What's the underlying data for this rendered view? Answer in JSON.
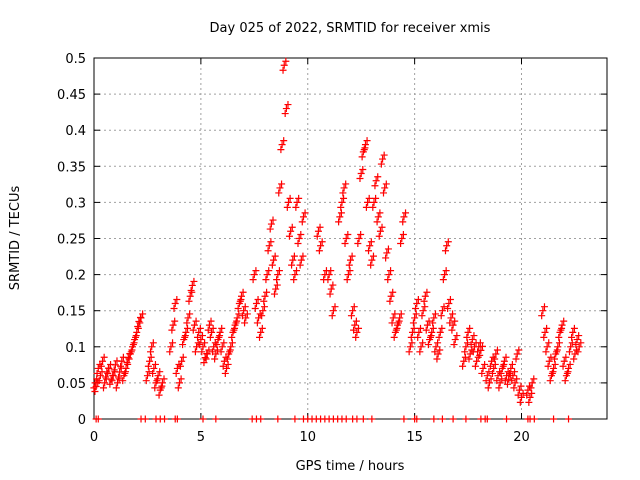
{
  "chart_data": {
    "type": "scatter",
    "title": "Day 025 of 2022, SRMTID for receiver xmis",
    "xlabel": "GPS time / hours",
    "ylabel": "SRMTID / TECUs",
    "xlim": [
      0,
      24
    ],
    "ylim": [
      0,
      0.5
    ],
    "xticks": [
      0,
      5,
      10,
      15,
      20
    ],
    "xtick_labels": [
      "0",
      "5",
      "10",
      "15",
      "20"
    ],
    "yticks": [
      0,
      0.05,
      0.1,
      0.15,
      0.2,
      0.25,
      0.3,
      0.35,
      0.4,
      0.45,
      0.5
    ],
    "ytick_labels": [
      "0",
      "0.05",
      "0.1",
      "0.15",
      "0.2",
      "0.25",
      "0.3",
      "0.35",
      "0.4",
      "0.45",
      "0.5"
    ],
    "grid": true,
    "marker": "+",
    "series": [
      {
        "name": "SRMTID",
        "color": "#ff0000",
        "points": [
          [
            0.05,
            0.05
          ],
          [
            0.1,
            0.045
          ],
          [
            0.2,
            0.07
          ],
          [
            0.3,
            0.06
          ],
          [
            0.4,
            0.08
          ],
          [
            0.5,
            0.05
          ],
          [
            0.6,
            0.065
          ],
          [
            0.7,
            0.07
          ],
          [
            0.8,
            0.055
          ],
          [
            0.9,
            0.06
          ],
          [
            1.0,
            0.075
          ],
          [
            1.1,
            0.05
          ],
          [
            1.2,
            0.065
          ],
          [
            1.3,
            0.08
          ],
          [
            1.4,
            0.06
          ],
          [
            1.5,
            0.07
          ],
          [
            1.6,
            0.085
          ],
          [
            1.7,
            0.09
          ],
          [
            1.8,
            0.1
          ],
          [
            1.9,
            0.11
          ],
          [
            2.0,
            0.12
          ],
          [
            2.1,
            0.135
          ],
          [
            2.2,
            0.14
          ],
          [
            2.5,
            0.06
          ],
          [
            2.6,
            0.08
          ],
          [
            2.7,
            0.1
          ],
          [
            2.8,
            0.07
          ],
          [
            2.9,
            0.05
          ],
          [
            3.0,
            0.06
          ],
          [
            3.1,
            0.04
          ],
          [
            3.2,
            0.05
          ],
          [
            3.6,
            0.1
          ],
          [
            3.7,
            0.13
          ],
          [
            3.8,
            0.16
          ],
          [
            3.9,
            0.07
          ],
          [
            4.0,
            0.05
          ],
          [
            4.1,
            0.08
          ],
          [
            4.2,
            0.11
          ],
          [
            4.3,
            0.12
          ],
          [
            4.4,
            0.14
          ],
          [
            4.5,
            0.17
          ],
          [
            4.6,
            0.185
          ],
          [
            4.7,
            0.13
          ],
          [
            4.8,
            0.1
          ],
          [
            4.9,
            0.12
          ],
          [
            5.0,
            0.11
          ],
          [
            5.1,
            0.1
          ],
          [
            5.2,
            0.085
          ],
          [
            5.3,
            0.09
          ],
          [
            5.4,
            0.13
          ],
          [
            5.5,
            0.12
          ],
          [
            5.6,
            0.1
          ],
          [
            5.7,
            0.09
          ],
          [
            5.8,
            0.11
          ],
          [
            5.9,
            0.12
          ],
          [
            6.0,
            0.1
          ],
          [
            6.1,
            0.08
          ],
          [
            6.2,
            0.07
          ],
          [
            6.3,
            0.09
          ],
          [
            6.4,
            0.1
          ],
          [
            6.5,
            0.12
          ],
          [
            6.6,
            0.13
          ],
          [
            6.7,
            0.14
          ],
          [
            6.8,
            0.16
          ],
          [
            6.9,
            0.17
          ],
          [
            7.0,
            0.15
          ],
          [
            7.1,
            0.14
          ],
          [
            7.5,
            0.2
          ],
          [
            7.6,
            0.16
          ],
          [
            7.7,
            0.14
          ],
          [
            7.8,
            0.12
          ],
          [
            7.9,
            0.15
          ],
          [
            8.0,
            0.17
          ],
          [
            8.1,
            0.2
          ],
          [
            8.2,
            0.24
          ],
          [
            8.3,
            0.27
          ],
          [
            8.4,
            0.22
          ],
          [
            8.5,
            0.18
          ],
          [
            8.6,
            0.2
          ],
          [
            8.7,
            0.32
          ],
          [
            8.8,
            0.38
          ],
          [
            8.9,
            0.49
          ],
          [
            9.0,
            0.43
          ],
          [
            9.1,
            0.3
          ],
          [
            9.2,
            0.26
          ],
          [
            9.3,
            0.22
          ],
          [
            9.4,
            0.2
          ],
          [
            9.5,
            0.3
          ],
          [
            9.6,
            0.25
          ],
          [
            9.7,
            0.22
          ],
          [
            9.8,
            0.28
          ],
          [
            10.5,
            0.26
          ],
          [
            10.6,
            0.24
          ],
          [
            10.8,
            0.2
          ],
          [
            11.0,
            0.2
          ],
          [
            11.1,
            0.18
          ],
          [
            11.2,
            0.15
          ],
          [
            11.5,
            0.28
          ],
          [
            11.6,
            0.3
          ],
          [
            11.7,
            0.32
          ],
          [
            11.8,
            0.25
          ],
          [
            11.9,
            0.2
          ],
          [
            12.0,
            0.22
          ],
          [
            12.1,
            0.15
          ],
          [
            12.2,
            0.13
          ],
          [
            12.3,
            0.12
          ],
          [
            12.4,
            0.25
          ],
          [
            12.5,
            0.34
          ],
          [
            12.6,
            0.37
          ],
          [
            12.7,
            0.38
          ],
          [
            12.8,
            0.3
          ],
          [
            12.9,
            0.24
          ],
          [
            13.0,
            0.22
          ],
          [
            13.1,
            0.3
          ],
          [
            13.2,
            0.33
          ],
          [
            13.3,
            0.28
          ],
          [
            13.4,
            0.26
          ],
          [
            13.5,
            0.36
          ],
          [
            13.6,
            0.32
          ],
          [
            13.7,
            0.23
          ],
          [
            13.8,
            0.2
          ],
          [
            13.9,
            0.17
          ],
          [
            14.0,
            0.14
          ],
          [
            14.1,
            0.12
          ],
          [
            14.2,
            0.13
          ],
          [
            14.3,
            0.14
          ],
          [
            14.4,
            0.25
          ],
          [
            14.5,
            0.28
          ],
          [
            14.8,
            0.1
          ],
          [
            14.9,
            0.12
          ],
          [
            15.0,
            0.14
          ],
          [
            15.1,
            0.16
          ],
          [
            15.2,
            0.12
          ],
          [
            15.3,
            0.1
          ],
          [
            15.4,
            0.15
          ],
          [
            15.5,
            0.17
          ],
          [
            15.6,
            0.13
          ],
          [
            15.7,
            0.11
          ],
          [
            15.8,
            0.12
          ],
          [
            15.9,
            0.14
          ],
          [
            16.0,
            0.1
          ],
          [
            16.1,
            0.09
          ],
          [
            16.2,
            0.12
          ],
          [
            16.3,
            0.15
          ],
          [
            16.4,
            0.2
          ],
          [
            16.5,
            0.24
          ],
          [
            16.6,
            0.16
          ],
          [
            16.7,
            0.14
          ],
          [
            16.8,
            0.13
          ],
          [
            16.9,
            0.11
          ],
          [
            17.3,
            0.08
          ],
          [
            17.4,
            0.1
          ],
          [
            17.5,
            0.12
          ],
          [
            17.6,
            0.09
          ],
          [
            17.7,
            0.11
          ],
          [
            17.8,
            0.1
          ],
          [
            17.9,
            0.08
          ],
          [
            18.0,
            0.1
          ],
          [
            18.1,
            0.095
          ],
          [
            18.2,
            0.07
          ],
          [
            18.4,
            0.06
          ],
          [
            18.5,
            0.05
          ],
          [
            18.6,
            0.08
          ],
          [
            18.7,
            0.07
          ],
          [
            18.8,
            0.09
          ],
          [
            18.9,
            0.06
          ],
          [
            19.0,
            0.05
          ],
          [
            19.1,
            0.07
          ],
          [
            19.2,
            0.08
          ],
          [
            19.3,
            0.06
          ],
          [
            19.4,
            0.055
          ],
          [
            19.5,
            0.07
          ],
          [
            19.6,
            0.06
          ],
          [
            19.7,
            0.05
          ],
          [
            19.8,
            0.09
          ],
          [
            19.9,
            0.04
          ],
          [
            20.0,
            0.03
          ],
          [
            20.3,
            0.04
          ],
          [
            20.4,
            0.03
          ],
          [
            20.5,
            0.05
          ],
          [
            21.0,
            0.15
          ],
          [
            21.1,
            0.12
          ],
          [
            21.2,
            0.1
          ],
          [
            21.3,
            0.08
          ],
          [
            21.4,
            0.06
          ],
          [
            21.5,
            0.07
          ],
          [
            21.6,
            0.09
          ],
          [
            21.7,
            0.1
          ],
          [
            21.8,
            0.12
          ],
          [
            21.9,
            0.13
          ],
          [
            22.0,
            0.08
          ],
          [
            22.1,
            0.06
          ],
          [
            22.2,
            0.07
          ],
          [
            22.3,
            0.1
          ],
          [
            22.4,
            0.12
          ],
          [
            22.5,
            0.09
          ],
          [
            22.6,
            0.11
          ],
          [
            22.7,
            0.1
          ]
        ]
      }
    ],
    "zero_markers_x": [
      0.1,
      0.2,
      2.2,
      2.4,
      2.9,
      3.1,
      3.3,
      3.8,
      3.9,
      5.1,
      5.7,
      7.4,
      7.6,
      7.8,
      8.6,
      9.4,
      9.8,
      10.0,
      10.2,
      10.4,
      10.6,
      10.8,
      11.0,
      11.2,
      11.4,
      11.6,
      11.8,
      12.1,
      12.3,
      12.6,
      13.0,
      14.5,
      15.0,
      15.1,
      15.9,
      16.3,
      16.8,
      17.4,
      18.1,
      18.3,
      18.4,
      19.3,
      20.3,
      20.4,
      20.6,
      21.5,
      22.2
    ]
  }
}
